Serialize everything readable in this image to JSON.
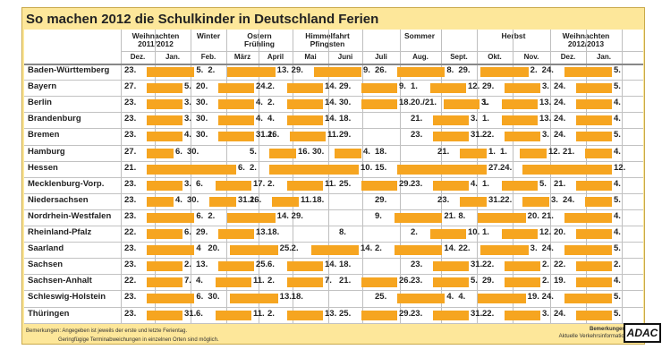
{
  "title": "So machen 2012 die Schulkinder in Deutschland Ferien",
  "groups": [
    "Weihnachten\n2011/2012",
    "Winter",
    "Ostern\nFrühling",
    "Himmelfahrt\nPfingsten",
    "Sommer",
    "Herbst",
    "Weihnachten\n2012/2013"
  ],
  "months": [
    "Dez.",
    "Jan.",
    "Feb.",
    "März",
    "April",
    "Mai",
    "Juni",
    "Juli",
    "Aug.",
    "Sept.",
    "Okt.",
    "Nov.",
    "Dez.",
    "Jan."
  ],
  "rows": [
    {
      "state": "Baden-Württemberg",
      "items": [
        [
          "23.",
          "5."
        ],
        [
          "2.",
          "13."
        ],
        [
          "29.",
          "9."
        ],
        [
          "26.",
          "8."
        ],
        [
          "29.",
          "2."
        ],
        [
          "24.",
          "5."
        ]
      ]
    },
    {
      "state": "Bayern",
      "items": [
        [
          "27.",
          "5."
        ],
        [
          "20.",
          "24."
        ],
        [
          "2.",
          "14."
        ],
        [
          "29.",
          "9."
        ],
        [
          "1.",
          "12."
        ],
        [
          "29.",
          "3."
        ],
        [
          "24.",
          "5."
        ]
      ]
    },
    {
      "state": "Berlin",
      "items": [
        [
          "23.",
          "3."
        ],
        [
          "30.",
          "4."
        ],
        [
          "2.",
          "14."
        ],
        [
          "30.",
          "18."
        ],
        [
          "20./21.",
          "3."
        ],
        [
          "1.",
          "13."
        ],
        [
          "24.",
          "4."
        ]
      ]
    },
    {
      "state": "Brandenburg",
      "items": [
        [
          "23.",
          "3."
        ],
        [
          "30.",
          "4."
        ],
        [
          "4.",
          "14."
        ],
        [
          "18."
        ],
        [
          "21.",
          "3."
        ],
        [
          "1.",
          "13."
        ],
        [
          "24.",
          "4."
        ]
      ]
    },
    {
      "state": "Bremen",
      "items": [
        [
          "23.",
          "4."
        ],
        [
          "30.",
          "31.1."
        ],
        [
          "26.",
          "11."
        ],
        [
          "29."
        ],
        [
          "23.",
          "31."
        ],
        [
          "22.",
          "3."
        ],
        [
          "24.",
          "5."
        ]
      ]
    },
    {
      "state": "Hamburg",
      "items": [
        [
          "27.",
          "6."
        ],
        [
          "30."
        ],
        [
          "5.",
          "16."
        ],
        [
          "30.",
          "4."
        ],
        [
          "18."
        ],
        [
          "21.",
          "1."
        ],
        [
          "1.",
          "12."
        ],
        [
          "21.",
          "4."
        ]
      ]
    },
    {
      "state": "Hessen",
      "items": [
        [
          "21.",
          "6."
        ],
        [
          "2.",
          "10."
        ],
        [
          "15.",
          "27."
        ],
        [
          "24.",
          "12."
        ]
      ]
    },
    {
      "state": "Mecklenburg-Vorp.",
      "items": [
        [
          "23.",
          "3."
        ],
        [
          "6.",
          "17."
        ],
        [
          "2.",
          "11."
        ],
        [
          "25.",
          "29."
        ],
        [
          "23.",
          "4."
        ],
        [
          "1.",
          "5."
        ],
        [
          "21.",
          "4."
        ]
      ]
    },
    {
      "state": "Niedersachsen",
      "items": [
        [
          "23.",
          "4."
        ],
        [
          "30.",
          "31.1."
        ],
        [
          "26.",
          "11."
        ],
        [
          "18."
        ],
        [
          "29."
        ],
        [
          "23.",
          "31."
        ],
        [
          "22.",
          "3."
        ],
        [
          "24.",
          "5."
        ]
      ]
    },
    {
      "state": "Nordrhein-Westfalen",
      "items": [
        [
          "23.",
          "6."
        ],
        [
          "2.",
          "14."
        ],
        [
          "29."
        ],
        [
          "9.",
          "21."
        ],
        [
          "8.",
          "20."
        ],
        [
          "21.",
          "4."
        ]
      ]
    },
    {
      "state": "Rheinland-Pfalz",
      "items": [
        [
          "22.",
          "6."
        ],
        [
          "29.",
          "13."
        ],
        [
          "18."
        ],
        [
          "8."
        ],
        [
          "2.",
          "10."
        ],
        [
          "1.",
          "12."
        ],
        [
          "20.",
          "4."
        ]
      ]
    },
    {
      "state": "Saarland",
      "items": [
        [
          "23.",
          "4"
        ],
        [
          "20.",
          "25."
        ],
        [
          "2.",
          "14."
        ],
        [
          "2.",
          "14."
        ],
        [
          "22.",
          "3."
        ],
        [
          "24.",
          "5."
        ]
      ]
    },
    {
      "state": "Sachsen",
      "items": [
        [
          "23.",
          "2."
        ],
        [
          "13.",
          "25."
        ],
        [
          "6.",
          "14."
        ],
        [
          "18."
        ],
        [
          "23.",
          "31."
        ],
        [
          "22.",
          "2."
        ],
        [
          "22.",
          "2."
        ]
      ]
    },
    {
      "state": "Sachsen-Anhalt",
      "items": [
        [
          "22.",
          "7."
        ],
        [
          "4.",
          "11."
        ],
        [
          "2.",
          "7."
        ],
        [
          "21.",
          "26."
        ],
        [
          "23.",
          "5."
        ],
        [
          "29.",
          "2."
        ],
        [
          "19.",
          "4."
        ]
      ]
    },
    {
      "state": "Schleswig-Holstein",
      "items": [
        [
          "23.",
          "6."
        ],
        [
          "30.",
          "13."
        ],
        [
          "18."
        ],
        [
          "25.",
          "4."
        ],
        [
          "4.",
          "19."
        ],
        [
          "24.",
          "5."
        ]
      ]
    },
    {
      "state": "Thüringen",
      "items": [
        [
          "23.",
          "31."
        ],
        [
          "6.",
          "11."
        ],
        [
          "2.",
          "13."
        ],
        [
          "25.",
          "29."
        ],
        [
          "23.",
          "31."
        ],
        [
          "22.",
          "3."
        ],
        [
          "24.",
          "5."
        ]
      ]
    }
  ],
  "notes": {
    "line1": "Bemerkungen: Angegeben ist jeweils der erste und letzte Ferientag.",
    "line2": "Geringfügige Terminabweichungen in einzelnen Orten sind möglich.",
    "right_title": "Bemerkungen:",
    "right_text": "Aktuelle Verkehrsinformation"
  },
  "logo": "ADAC",
  "colors": {
    "background": "#fde79a",
    "bar": "#f6a520",
    "grid": "#bfbfbf"
  }
}
